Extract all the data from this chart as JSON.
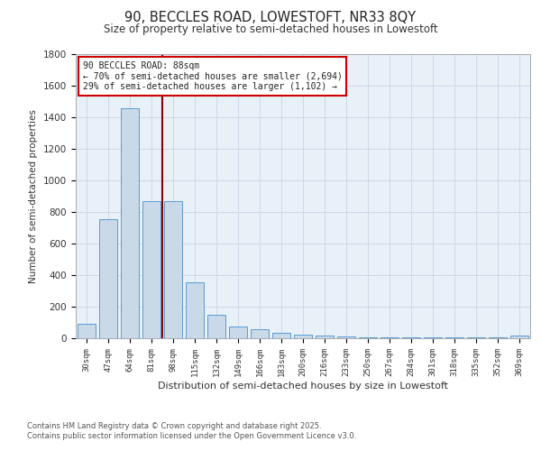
{
  "title1": "90, BECCLES ROAD, LOWESTOFT, NR33 8QY",
  "title2": "Size of property relative to semi-detached houses in Lowestoft",
  "xlabel": "Distribution of semi-detached houses by size in Lowestoft",
  "ylabel": "Number of semi-detached properties",
  "bar_labels": [
    "30sqm",
    "47sqm",
    "64sqm",
    "81sqm",
    "98sqm",
    "115sqm",
    "132sqm",
    "149sqm",
    "166sqm",
    "183sqm",
    "200sqm",
    "216sqm",
    "233sqm",
    "250sqm",
    "267sqm",
    "284sqm",
    "301sqm",
    "318sqm",
    "335sqm",
    "352sqm",
    "369sqm"
  ],
  "bar_values": [
    90,
    755,
    1455,
    870,
    870,
    355,
    150,
    75,
    55,
    35,
    25,
    18,
    12,
    5,
    5,
    5,
    5,
    5,
    5,
    5,
    18
  ],
  "bar_color": "#c9d9e8",
  "bar_edge_color": "#5b9bd5",
  "grid_color": "#d0d8e8",
  "background_color": "#e8f0f8",
  "red_line_x": 3.5,
  "annotation_title": "90 BECCLES ROAD: 88sqm",
  "annotation_line1": "← 70% of semi-detached houses are smaller (2,694)",
  "annotation_line2": "29% of semi-detached houses are larger (1,102) →",
  "annotation_box_color": "#ffffff",
  "annotation_box_edge": "#cc0000",
  "ylim": [
    0,
    1800
  ],
  "yticks": [
    0,
    200,
    400,
    600,
    800,
    1000,
    1200,
    1400,
    1600,
    1800
  ],
  "footer1": "Contains HM Land Registry data © Crown copyright and database right 2025.",
  "footer2": "Contains public sector information licensed under the Open Government Licence v3.0."
}
